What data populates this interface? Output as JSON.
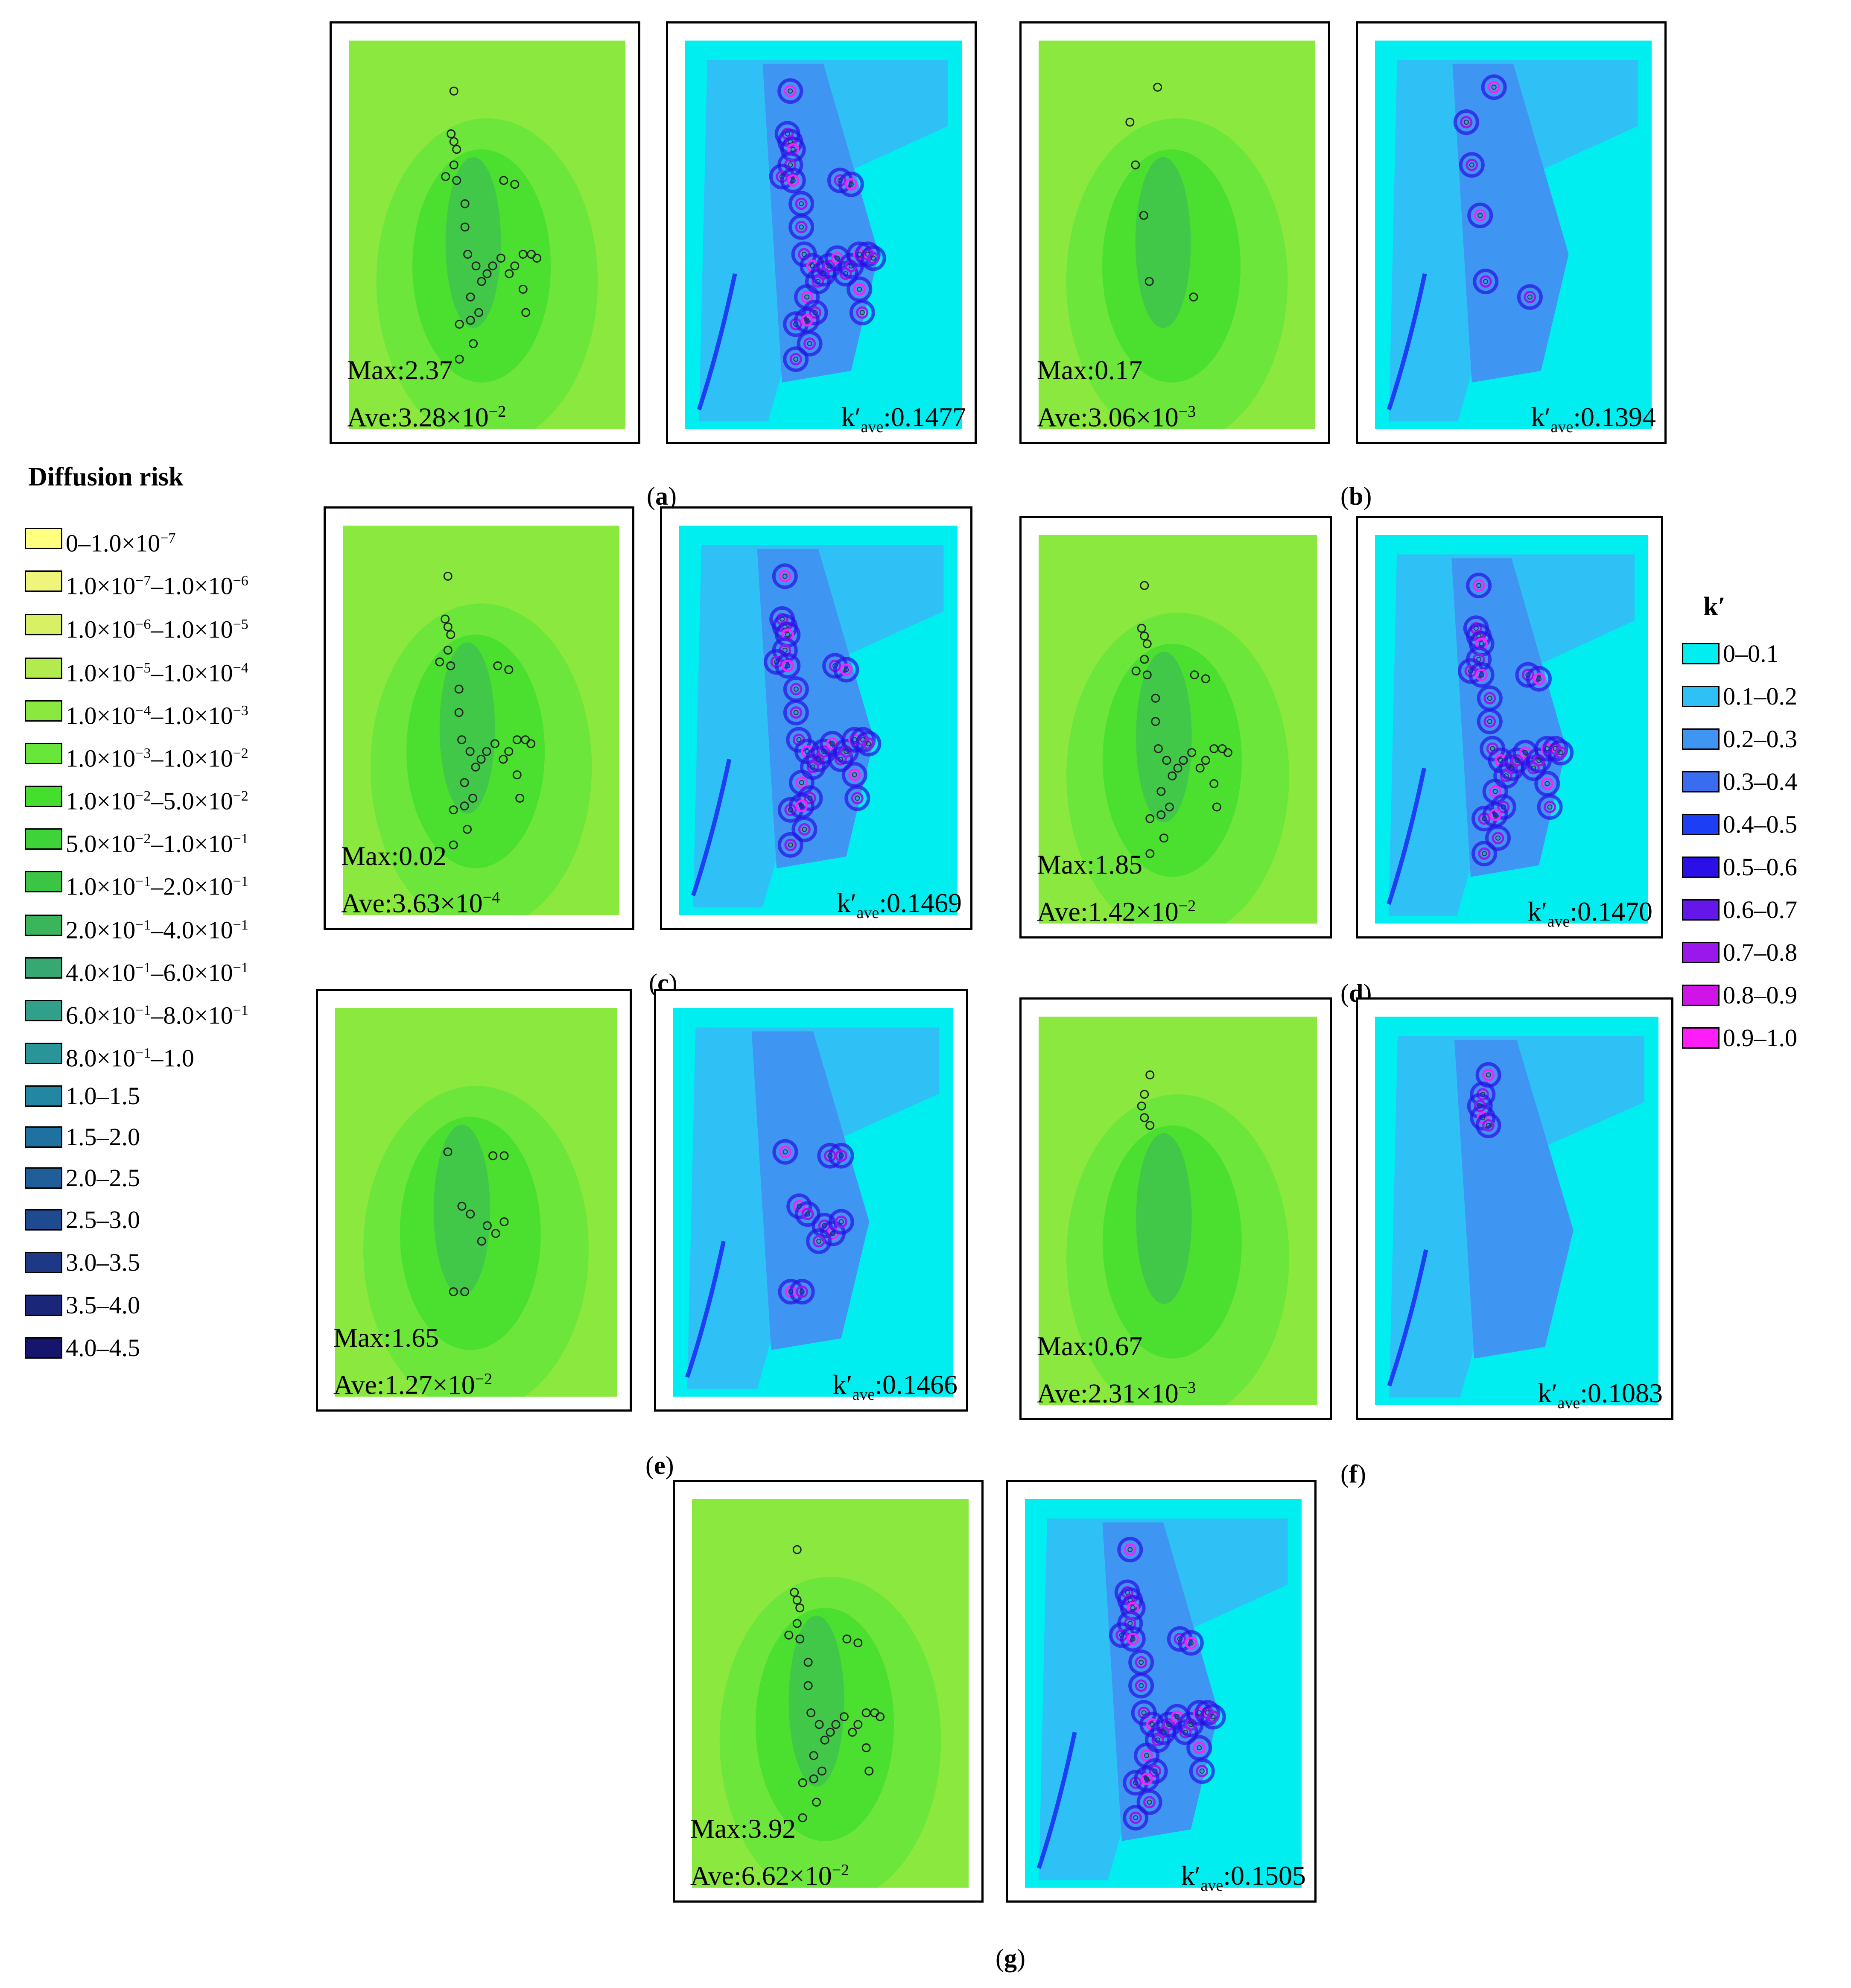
{
  "panels": [
    {
      "id": "a",
      "caption": "a",
      "max_label": "Max:2.37",
      "ave_label": "Ave:3.28×10",
      "ave_exp": "−2",
      "k_prefix": "k′",
      "k_sub": "ave",
      "k_value": ":0.1477",
      "pattern": "full"
    },
    {
      "id": "b",
      "caption": "b",
      "max_label": "Max:0.17",
      "ave_label": "Ave:3.06×10",
      "ave_exp": "−3",
      "k_prefix": "k′",
      "k_sub": "ave",
      "k_value": ":0.1394",
      "pattern": "chain"
    },
    {
      "id": "c",
      "caption": "c",
      "max_label": "Max:0.02",
      "ave_label": "Ave:3.63×10",
      "ave_exp": "−4",
      "k_prefix": "k′",
      "k_sub": "ave",
      "k_value": ":0.1469",
      "pattern": "full"
    },
    {
      "id": "d",
      "caption": "d",
      "max_label": "Max:1.85",
      "ave_label": "Ave:1.42×10",
      "ave_exp": "−2",
      "k_prefix": "k′",
      "k_sub": "ave",
      "k_value": ":0.1470",
      "pattern": "full"
    },
    {
      "id": "e",
      "caption": "e",
      "max_label": "Max:1.65",
      "ave_label": "Ave:1.27×10",
      "ave_exp": "−2",
      "k_prefix": "k′",
      "k_sub": "ave",
      "k_value": ":0.1466",
      "pattern": "clusters"
    },
    {
      "id": "f",
      "caption": "f",
      "max_label": "Max:0.67",
      "ave_label": "Ave:2.31×10",
      "ave_exp": "−3",
      "k_prefix": "k′",
      "k_sub": "ave",
      "k_value": ":0.1083",
      "pattern": "top"
    },
    {
      "id": "g",
      "caption": "g",
      "max_label": "Max:3.92",
      "ave_label": "Ave:6.62×10",
      "ave_exp": "−2",
      "k_prefix": "k′",
      "k_sub": "ave",
      "k_value": ":0.1505",
      "pattern": "full"
    }
  ],
  "diffusion_legend": {
    "title": "Diffusion risk",
    "items": [
      {
        "label": "0–1.0×10",
        "sup": "−7",
        "color": "#ffff80"
      },
      {
        "label": "1.0×10",
        "sup": "−7",
        "label2": "–1.0×10",
        "sup2": "−6",
        "color": "#eef57a"
      },
      {
        "label": "1.0×10",
        "sup": "−6",
        "label2": "–1.0×10",
        "sup2": "−5",
        "color": "#d8f064"
      },
      {
        "label": "1.0×10",
        "sup": "−5",
        "label2": "–1.0×10",
        "sup2": "−4",
        "color": "#b3eb4f"
      },
      {
        "label": "1.0×10",
        "sup": "−4",
        "label2": "–1.0×10",
        "sup2": "−3",
        "color": "#8ae83e"
      },
      {
        "label": "1.0×10",
        "sup": "−3",
        "label2": "–1.0×10",
        "sup2": "−2",
        "color": "#68e63a"
      },
      {
        "label": "1.0×10",
        "sup": "−2",
        "label2": "–5.0×10",
        "sup2": "−2",
        "color": "#45dd2e"
      },
      {
        "label": "5.0×10",
        "sup": "−2",
        "label2": "–1.0×10",
        "sup2": "−1",
        "color": "#3fd33a"
      },
      {
        "label": "1.0×10",
        "sup": "−1",
        "label2": "–2.0×10",
        "sup2": "−1",
        "color": "#3cc444"
      },
      {
        "label": "2.0×10",
        "sup": "−1",
        "label2": "–4.0×10",
        "sup2": "−1",
        "color": "#3bb55c"
      },
      {
        "label": "4.0×10",
        "sup": "−1",
        "label2": "–6.0×10",
        "sup2": "−1",
        "color": "#38a873"
      },
      {
        "label": "6.0×10",
        "sup": "−1",
        "label2": "–8.0×10",
        "sup2": "−1",
        "color": "#31a08a"
      },
      {
        "label": "8.0×10",
        "sup": "−1",
        "label2": "–1.0",
        "sup2": "",
        "color": "#2a9598"
      },
      {
        "label": "1.0–1.5",
        "sup": "",
        "color": "#2386a3"
      },
      {
        "label": "1.5–2.0",
        "sup": "",
        "color": "#1f72a0"
      },
      {
        "label": "2.0–2.5",
        "sup": "",
        "color": "#1f5e99"
      },
      {
        "label": "2.5–3.0",
        "sup": "",
        "color": "#1f4a8f"
      },
      {
        "label": "3.0–3.5",
        "sup": "",
        "color": "#1d3885"
      },
      {
        "label": "3.5–4.0",
        "sup": "",
        "color": "#1a2778"
      },
      {
        "label": "4.0–4.5",
        "sup": "",
        "color": "#14156b"
      }
    ]
  },
  "k_legend": {
    "title": "k′",
    "items": [
      {
        "label": "0–0.1",
        "color": "#00eef0"
      },
      {
        "label": "0.1–0.2",
        "color": "#2fc0f5"
      },
      {
        "label": "0.2–0.3",
        "color": "#3f96f2"
      },
      {
        "label": "0.3–0.4",
        "color": "#3a6cf0"
      },
      {
        "label": "0.4–0.5",
        "color": "#1c3ef5"
      },
      {
        "label": "0.5–0.6",
        "color": "#2a10e6"
      },
      {
        "label": "0.6–0.7",
        "color": "#6417e8"
      },
      {
        "label": "0.7–0.8",
        "color": "#9a18ec"
      },
      {
        "label": "0.8–0.9",
        "color": "#cf14e8"
      },
      {
        "label": "0.9–1.0",
        "color": "#ff1ef8"
      }
    ]
  }
}
